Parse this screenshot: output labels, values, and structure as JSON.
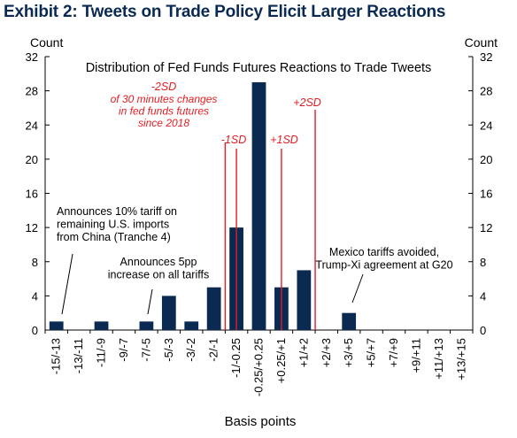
{
  "exhibit_title": "Exhibit 2: Tweets on Trade Policy Elicit Larger Reactions",
  "chart_data": {
    "type": "bar",
    "title": "Distribution of Fed Funds Futures Reactions to Trade Tweets",
    "xlabel": "Basis points",
    "ylabel_left": "Count",
    "ylabel_right": "Count",
    "ylim": [
      0,
      32
    ],
    "yticks": [
      0,
      4,
      8,
      12,
      16,
      20,
      24,
      28,
      32
    ],
    "categories": [
      "-15/-13",
      "-13/-11",
      "-11/-9",
      "-9/-7",
      "-7/-5",
      "-5/-3",
      "-3/-2",
      "-2/-1",
      "-1/-0.25",
      "-0.25/+0.25",
      "+0.25/+1",
      "+1/+2",
      "+2/+3",
      "+3/+5",
      "+5/+7",
      "+7/+9",
      "+9/+11",
      "+11/+13",
      "+13/+15"
    ],
    "values": [
      1,
      0,
      1,
      0,
      1,
      4,
      1,
      5,
      12,
      29,
      5,
      7,
      0,
      2,
      0,
      0,
      0,
      0,
      0
    ],
    "bar_color": "#0b2a52",
    "annotation_color": "#e31c23",
    "grid": false,
    "reference_lines": [
      {
        "label": "-2SD",
        "at_category": "-2/-1"
      },
      {
        "label": "-1SD",
        "at_category": "-1/-0.25"
      },
      {
        "label": "+1SD",
        "at_category": "+0.25/+1"
      },
      {
        "label": "+2SD",
        "at_category": "+1/+2"
      }
    ],
    "sd_note": [
      "of 30 minutes changes",
      "in fed  funds futures",
      "since 2018"
    ],
    "annotations": [
      {
        "lines": [
          "Announces 10% tariff on",
          "remaining U.S. imports",
          "from China (Tranche 4)"
        ],
        "target_category": "-15/-13"
      },
      {
        "lines": [
          "Announces 5pp",
          "increase on all tariffs"
        ],
        "target_category": "-7/-5"
      },
      {
        "lines": [
          "Mexico tariffs avoided,",
          "Trump-Xi agreement at G20"
        ],
        "target_category": "+3/+5"
      }
    ]
  }
}
